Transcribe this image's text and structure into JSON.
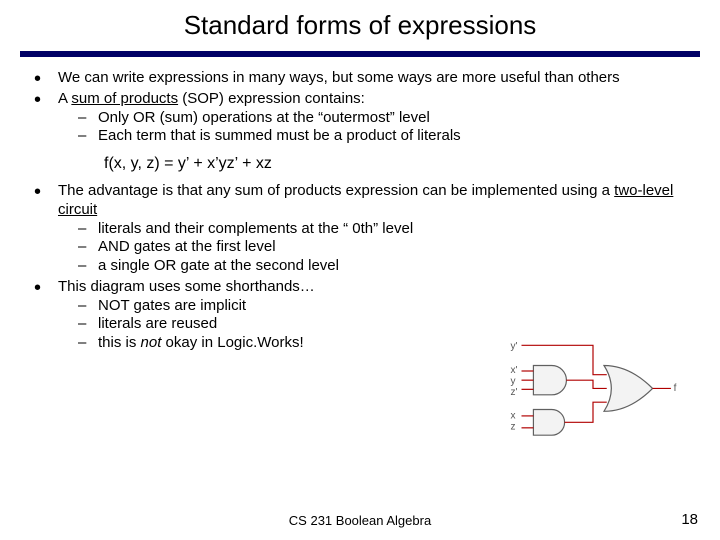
{
  "title": "Standard forms of expressions",
  "b1": "We can write expressions in many ways, but some ways are more useful than others",
  "b2_pre": "A ",
  "b2_u": "sum of products",
  "b2_post": " (SOP) expression contains:",
  "b2a": "Only OR (sum) operations at the “outermost” level",
  "b2b": "Each term that is summed must be a product of literals",
  "formula": "f(x, y, z) = y’ + x’yz’ + xz",
  "b3_pre": "The advantage is that any sum of products expression can be implemented using a ",
  "b3_u": "two-level circuit",
  "b3a": "literals and their complements at the “ 0th” level",
  "b3b": "AND gates at the first level",
  "b3c": "a single OR gate at the second level",
  "b4": "This diagram uses some shorthands…",
  "b4a": "NOT gates are implicit",
  "b4b": "literals are reused",
  "b4c_pre": "this is ",
  "b4c_em": "not",
  "b4c_post": " okay in Logic.Works!",
  "footer_course": "CS 231 Boolean Algebra",
  "footer_num": "18",
  "diagram": {
    "labels": {
      "y_p": "y'",
      "x_p": "x'",
      "y": "y",
      "z_p": "z'",
      "x": "x",
      "z": "z",
      "f": "f"
    },
    "colors": {
      "wire": "#b00000",
      "gate_stroke": "#606060",
      "gate_fill": "#f3f3f3",
      "text": "#555555"
    }
  }
}
